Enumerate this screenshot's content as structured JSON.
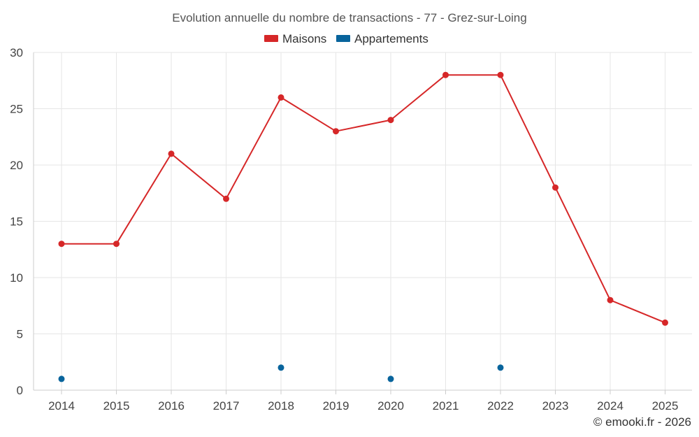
{
  "chart_data": {
    "type": "line",
    "title": "Evolution annuelle du nombre de transactions - 77 - Grez-sur-Loing",
    "xlabel": "",
    "ylabel": "",
    "categories": [
      "2014",
      "2015",
      "2016",
      "2017",
      "2018",
      "2019",
      "2020",
      "2021",
      "2022",
      "2023",
      "2024",
      "2025"
    ],
    "ylim": [
      0,
      30
    ],
    "yticks": [
      0,
      5,
      10,
      15,
      20,
      25,
      30
    ],
    "grid": true,
    "legend_position": "top-center",
    "series": [
      {
        "name": "Maisons",
        "color": "#d62728",
        "style": "line-markers",
        "values": [
          13,
          13,
          21,
          17,
          26,
          23,
          24,
          28,
          28,
          18,
          8,
          6
        ]
      },
      {
        "name": "Appartements",
        "color": "#08649c",
        "style": "markers",
        "values": [
          1,
          null,
          null,
          null,
          2,
          null,
          1,
          null,
          2,
          null,
          null,
          null
        ]
      }
    ]
  },
  "footer": {
    "credit": "© emooki.fr - 2026"
  }
}
